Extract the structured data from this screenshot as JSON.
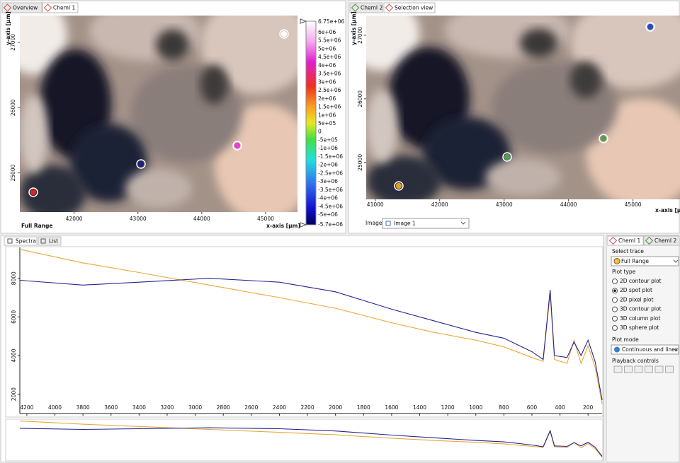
{
  "left_panel": {
    "tabs": [
      "Overview",
      "ChemI 1"
    ],
    "y_axis_label": "y-axis [µm]",
    "x_axis_label": "x-axis [µm]",
    "range_label": "Full Range",
    "xlim": [
      41150,
      45500
    ],
    "xticks": [
      42000,
      43000,
      44000,
      45000
    ],
    "ylim": [
      24400,
      27410
    ],
    "yticks": [
      25000,
      26000,
      27000
    ],
    "colorbar_labels": [
      "6.75e+06",
      "6e+06",
      "5.5e+06",
      "5e+06",
      "4.5e+06",
      "4e+06",
      "3.5e+06",
      "3e+06",
      "2.5e+06",
      "2e+06",
      "1.5e+06",
      "1e+06",
      "5e+05",
      "0",
      "-5e+05",
      "-1e+06",
      "-1.5e+06",
      "-2e+06",
      "-2.5e+06",
      "-3e+06",
      "-3.5e+06",
      "-4e+06",
      "-4.5e+06",
      "-5e+06",
      "-5.7e+06"
    ]
  },
  "right_panel": {
    "tabs": [
      "ChemI 2",
      "Selection view"
    ],
    "y_axis_label": "y-axis [µm]",
    "x_axis_label": "x-axis [µm]",
    "xlim": [
      40860,
      45730
    ],
    "xticks": [
      41000,
      42000,
      43000,
      44000,
      45000
    ],
    "ylim": [
      24420,
      27310
    ],
    "yticks": [
      25000,
      26000,
      27000
    ],
    "image_label": "Image:",
    "image_select": "Image 1"
  },
  "spectra": {
    "tabs": [
      "Spectra",
      "List"
    ],
    "x": [
      4250,
      3800,
      3400,
      2900,
      2400,
      2000,
      1600,
      1300,
      1000,
      800,
      600,
      520,
      470,
      440,
      350,
      300,
      250,
      200,
      150,
      100
    ],
    "series": [
      {
        "color": "#e8a838",
        "values": [
          9500,
          8800,
          8300,
          7650,
          7000,
          6450,
          5700,
          5200,
          4800,
          4450,
          3900,
          3700,
          7200,
          3800,
          3600,
          4800,
          3600,
          4500,
          3400,
          1500
        ]
      },
      {
        "color": "#24248f",
        "values": [
          7900,
          7650,
          7800,
          8000,
          7800,
          7300,
          6400,
          5800,
          5200,
          4900,
          4200,
          3800,
          7400,
          4000,
          3900,
          4700,
          4000,
          4800,
          3700,
          1700
        ]
      }
    ],
    "xlim": [
      4250,
      100
    ],
    "ylim": [
      1000,
      9600
    ],
    "xticks": [
      4200,
      4000,
      3800,
      3600,
      3400,
      3200,
      3000,
      2800,
      2600,
      2400,
      2200,
      2000,
      1800,
      1600,
      1400,
      1200,
      1000,
      800,
      600,
      400,
      200
    ],
    "yticks": [
      2000,
      4000,
      6000,
      8000
    ]
  },
  "side_panel": {
    "tabs": [
      "ChemI 1",
      "ChemI 2"
    ],
    "select_trace_label": "Select trace",
    "trace": "Full Range",
    "plot_type_label": "Plot type",
    "plot_types": [
      "2D contour plot",
      "2D spot plot",
      "2D pixel plot",
      "3D contour plot",
      "3D column plot",
      "3D sphere plot"
    ],
    "selected_plot_type": 1,
    "plot_mode_label": "Plot mode",
    "plot_mode": "Continuous and lines",
    "playback_label": "Playback controls"
  }
}
